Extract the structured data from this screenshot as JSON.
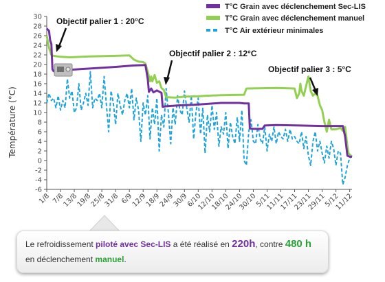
{
  "chart_data": {
    "type": "line",
    "ylabel": "Température (°C)",
    "ylim": [
      -6,
      30
    ],
    "yticks": [
      -6,
      -4,
      -2,
      0,
      2,
      4,
      6,
      8,
      10,
      12,
      14,
      16,
      18,
      20,
      22,
      24,
      26,
      28,
      30
    ],
    "xlim": [
      0,
      133
    ],
    "x_tick_labels": [
      "1/8",
      "7/8",
      "13/8",
      "19/8",
      "25/8",
      "31/8",
      "6/9",
      "12/9",
      "18/9",
      "24/9",
      "30/9",
      "6/10",
      "12/10",
      "18/10",
      "24/10",
      "30/10",
      "5/11",
      "11/11",
      "17/11",
      "23/11",
      "29/11",
      "5/12",
      "11/12"
    ],
    "x_tick_positions": [
      0,
      6,
      12,
      18,
      24,
      30,
      36,
      42,
      48,
      54,
      60,
      66,
      72,
      78,
      84,
      90,
      96,
      102,
      108,
      114,
      120,
      126,
      132
    ],
    "legend_position": "top-right",
    "grid": false,
    "series": [
      {
        "name": "T°C Grain avec déclenchement Sec-LIS",
        "color": "#7030a0",
        "style": "solid",
        "points": [
          [
            0,
            27.5
          ],
          [
            1,
            27
          ],
          [
            1.5,
            25
          ],
          [
            2,
            24.3
          ],
          [
            2.5,
            19
          ],
          [
            3,
            18.6
          ],
          [
            8,
            18.8
          ],
          [
            10,
            18.9
          ],
          [
            20,
            19.2
          ],
          [
            30,
            19.5
          ],
          [
            38,
            19.8
          ],
          [
            43,
            19.9
          ],
          [
            44,
            17
          ],
          [
            44.5,
            14.3
          ],
          [
            45.5,
            15
          ],
          [
            46.5,
            14.2
          ],
          [
            48,
            14.6
          ],
          [
            50,
            14.1
          ],
          [
            50.5,
            11.2
          ],
          [
            52,
            11.3
          ],
          [
            58,
            11.5
          ],
          [
            64,
            11.6
          ],
          [
            70,
            11.8
          ],
          [
            76,
            12
          ],
          [
            84,
            12
          ],
          [
            86,
            11.9
          ],
          [
            88,
            11.9
          ],
          [
            88.5,
            6.7
          ],
          [
            90,
            6.6
          ],
          [
            94,
            6.6
          ],
          [
            95,
            7.3
          ],
          [
            100,
            7.4
          ],
          [
            110,
            7.3
          ],
          [
            120,
            7.2
          ],
          [
            129,
            7.2
          ],
          [
            130,
            5
          ],
          [
            131,
            1
          ],
          [
            132,
            0.8
          ],
          [
            133,
            0.8
          ]
        ]
      },
      {
        "name": "T°C Grain avec déclenchement manuel",
        "color": "#92d050",
        "style": "solid",
        "points": [
          [
            0,
            26
          ],
          [
            1,
            23.5
          ],
          [
            2,
            22
          ],
          [
            3,
            21.8
          ],
          [
            6,
            21.6
          ],
          [
            10,
            21.5
          ],
          [
            20,
            21.7
          ],
          [
            30,
            21.8
          ],
          [
            36,
            21.9
          ],
          [
            38,
            21
          ],
          [
            40,
            20.6
          ],
          [
            42,
            20.5
          ],
          [
            43,
            20.2
          ],
          [
            44,
            18.5
          ],
          [
            45,
            16.5
          ],
          [
            45.5,
            17.5
          ],
          [
            46,
            16.5
          ],
          [
            47,
            17.8
          ],
          [
            48,
            16.2
          ],
          [
            49,
            16.5
          ],
          [
            50,
            15.1
          ],
          [
            51,
            14.7
          ],
          [
            52,
            13.2
          ],
          [
            56,
            13.1
          ],
          [
            60,
            13.3
          ],
          [
            66,
            13.4
          ],
          [
            70,
            13.5
          ],
          [
            76,
            13.6
          ],
          [
            86,
            13.7
          ],
          [
            87,
            15
          ],
          [
            100,
            15.1
          ],
          [
            108,
            15
          ],
          [
            109,
            13
          ],
          [
            110,
            14
          ],
          [
            110.5,
            16
          ],
          [
            111,
            14.5
          ],
          [
            112,
            13.5
          ],
          [
            113,
            15.5
          ],
          [
            114,
            17.5
          ],
          [
            115,
            14.5
          ],
          [
            116,
            13.5
          ],
          [
            117,
            14
          ],
          [
            118,
            13.5
          ],
          [
            119,
            11.5
          ],
          [
            120,
            10.5
          ],
          [
            121,
            8
          ],
          [
            122,
            6
          ],
          [
            123,
            8.5
          ],
          [
            124,
            6.5
          ],
          [
            126,
            6.5
          ],
          [
            128,
            6.8
          ],
          [
            129,
            6.2
          ],
          [
            130,
            7
          ],
          [
            131,
            3
          ],
          [
            131.5,
            1.5
          ],
          [
            133,
            0.8
          ]
        ]
      },
      {
        "name": "T°C Air extérieur minimales",
        "color": "#1fa4d9",
        "style": "dashed",
        "points": [
          [
            0,
            12
          ],
          [
            1,
            14
          ],
          [
            2,
            12.5
          ],
          [
            3,
            13
          ],
          [
            4,
            11
          ],
          [
            5,
            13.5
          ],
          [
            6,
            10.5
          ],
          [
            7,
            12.5
          ],
          [
            8,
            11
          ],
          [
            9,
            17
          ],
          [
            10,
            13
          ],
          [
            11,
            14.5
          ],
          [
            12,
            10
          ],
          [
            13,
            11
          ],
          [
            14,
            16
          ],
          [
            15,
            10.5
          ],
          [
            16,
            12
          ],
          [
            17,
            14
          ],
          [
            18,
            11.5
          ],
          [
            19,
            18.5
          ],
          [
            20,
            11
          ],
          [
            21,
            13
          ],
          [
            22,
            12.5
          ],
          [
            23,
            14
          ],
          [
            24,
            11
          ],
          [
            25,
            17.5
          ],
          [
            26,
            11.5
          ],
          [
            27,
            6
          ],
          [
            28,
            14.5
          ],
          [
            29,
            12
          ],
          [
            30,
            7.5
          ],
          [
            31,
            14
          ],
          [
            32,
            11.5
          ],
          [
            33,
            9.5
          ],
          [
            34,
            12.5
          ],
          [
            35,
            14
          ],
          [
            36,
            11
          ],
          [
            37,
            15
          ],
          [
            38,
            8.5
          ],
          [
            39,
            13
          ],
          [
            40,
            10.5
          ],
          [
            41,
            4
          ],
          [
            42,
            12
          ],
          [
            43,
            9.5
          ],
          [
            44,
            13.5
          ],
          [
            45,
            4.5
          ],
          [
            46,
            11
          ],
          [
            47,
            7.5
          ],
          [
            48,
            13
          ],
          [
            49,
            2
          ],
          [
            50,
            9.5
          ],
          [
            51,
            7
          ],
          [
            52,
            15
          ],
          [
            53,
            10
          ],
          [
            54,
            3.5
          ],
          [
            55,
            11
          ],
          [
            56,
            7.5
          ],
          [
            57,
            13.5
          ],
          [
            58,
            10.5
          ],
          [
            59,
            9.5
          ],
          [
            60,
            14.5
          ],
          [
            61,
            11
          ],
          [
            62,
            8
          ],
          [
            63,
            13.5
          ],
          [
            64,
            4.5
          ],
          [
            65,
            10
          ],
          [
            66,
            13
          ],
          [
            67,
            5.5
          ],
          [
            68,
            11
          ],
          [
            69,
            1.5
          ],
          [
            70,
            9.5
          ],
          [
            71,
            6
          ],
          [
            72,
            11.5
          ],
          [
            73,
            6.5
          ],
          [
            74,
            10
          ],
          [
            75,
            3
          ],
          [
            76,
            7
          ],
          [
            77,
            5.5
          ],
          [
            78,
            10
          ],
          [
            79,
            2.5
          ],
          [
            80,
            8
          ],
          [
            81,
            5
          ],
          [
            82,
            3.5
          ],
          [
            83,
            9
          ],
          [
            84,
            4
          ],
          [
            85,
            10.5
          ],
          [
            86,
            0
          ],
          [
            87,
            -1
          ],
          [
            88,
            6
          ],
          [
            89,
            8.5
          ],
          [
            90,
            4
          ],
          [
            91,
            3.5
          ],
          [
            92,
            7.5
          ],
          [
            93,
            4.5
          ],
          [
            94,
            3.5
          ],
          [
            95,
            7
          ],
          [
            96,
            2
          ],
          [
            97,
            5.5
          ],
          [
            98,
            4
          ],
          [
            99,
            7
          ],
          [
            100,
            3.5
          ],
          [
            101,
            6
          ],
          [
            102,
            5
          ],
          [
            103,
            4.5
          ],
          [
            104,
            6.5
          ],
          [
            105,
            4
          ],
          [
            106,
            6.5
          ],
          [
            107,
            4.5
          ],
          [
            108,
            5
          ],
          [
            109,
            4
          ],
          [
            110,
            3.5
          ],
          [
            111,
            6
          ],
          [
            112,
            2.5
          ],
          [
            113,
            5
          ],
          [
            114,
            1
          ],
          [
            115,
            -1
          ],
          [
            116,
            4
          ],
          [
            117,
            6
          ],
          [
            118,
            2
          ],
          [
            119,
            4
          ],
          [
            120,
            1.5
          ],
          [
            121,
            -0.5
          ],
          [
            122,
            3
          ],
          [
            123,
            0.5
          ],
          [
            124,
            4
          ],
          [
            125,
            2.5
          ],
          [
            126,
            -1
          ],
          [
            127,
            2
          ],
          [
            128,
            1.5
          ],
          [
            129,
            -5
          ],
          [
            130,
            -3.5
          ],
          [
            131,
            -1
          ],
          [
            132,
            0.5
          ],
          [
            133,
            1
          ]
        ]
      }
    ],
    "annotations": [
      {
        "text": "Objectif palier 1 : 20°C"
      },
      {
        "text": "Objectif palier 2 : 12°C"
      },
      {
        "text": "Objectif palier 3 : 5°C"
      }
    ]
  },
  "callout": {
    "p1": "Le refroidissement ",
    "p2": "piloté avec Sec-LIS",
    "p3": " a été réalisé en ",
    "p4": "220h",
    "p5": ", contre ",
    "p6": "480 h",
    "p7": "en déclenchement ",
    "p8": "manuel",
    "p9": "."
  }
}
